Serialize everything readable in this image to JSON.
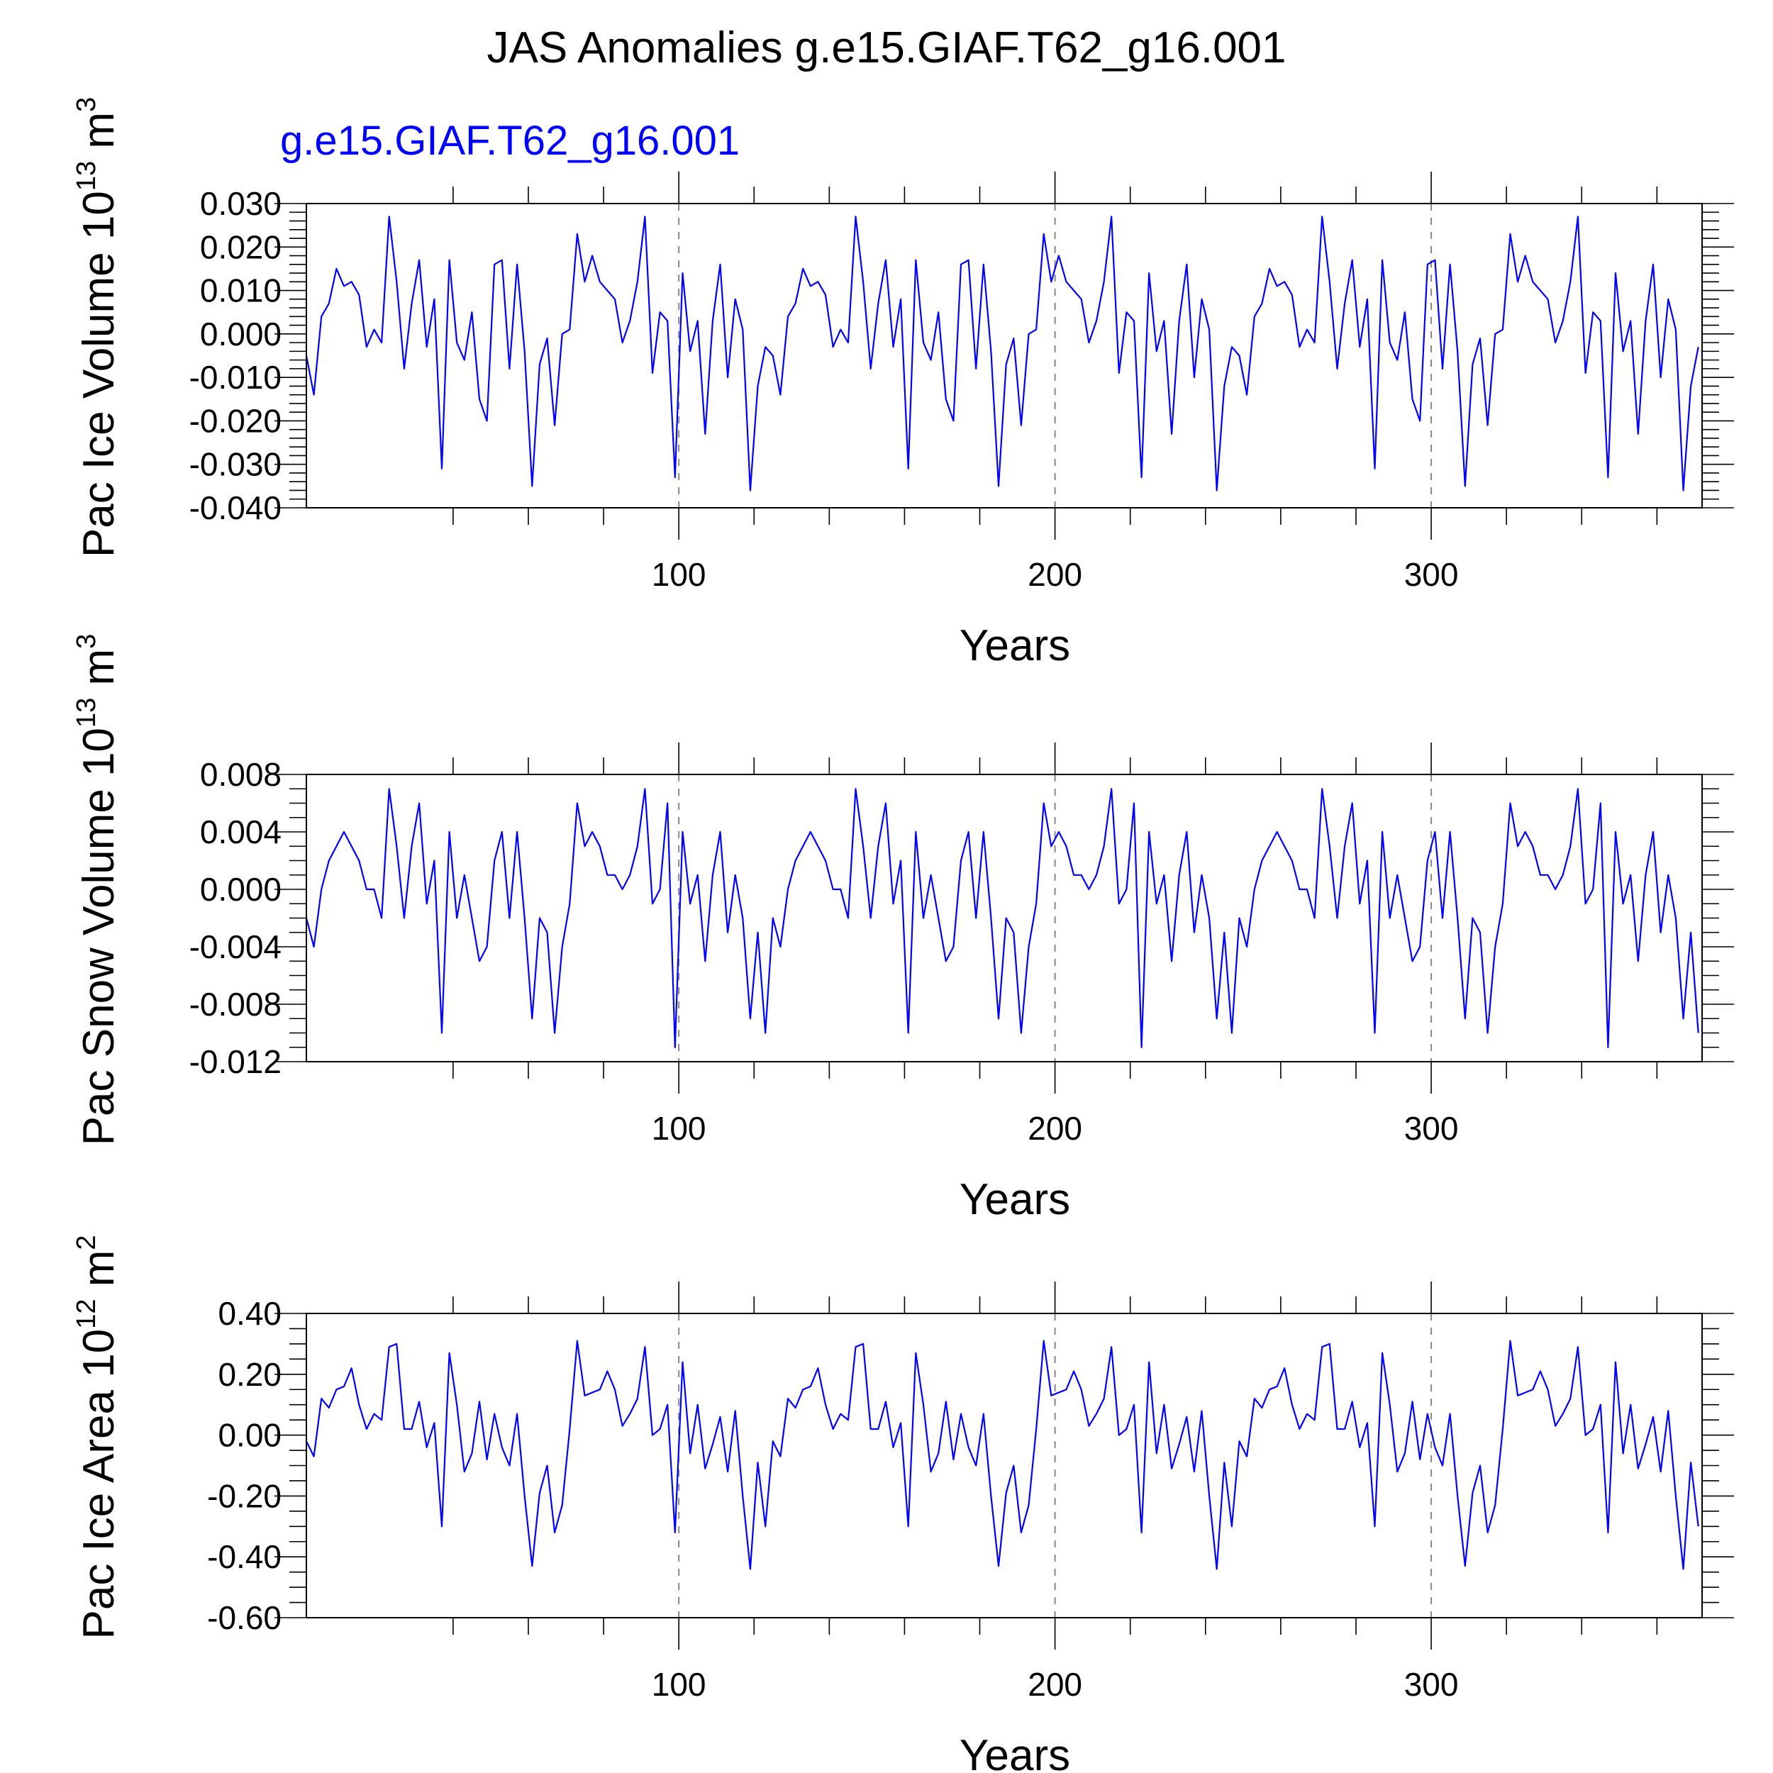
{
  "title": "JAS Anomalies g.e15.GIAF.T62_g16.001",
  "case_label": "g.e15.GIAF.T62_g16.001",
  "line_color": "#0000ff",
  "chart_data": [
    {
      "type": "line",
      "name": "Pac Ice Volume",
      "ylabel": {
        "text": "Pac Ice Volume 10",
        "exp": "13",
        "unit": " m",
        "unit_exp": "3"
      },
      "xlabel": "Years",
      "xlim": [
        1,
        372
      ],
      "ylim": [
        -0.04,
        0.03
      ],
      "x_ticks": [
        100,
        200,
        300
      ],
      "x_minor": [
        40,
        60,
        80,
        120,
        140,
        160,
        180,
        220,
        240,
        260,
        280,
        320,
        340,
        360
      ],
      "x_dashed_gridlines": [
        100,
        200,
        300
      ],
      "y_ticks": [
        0.03,
        0.02,
        0.01,
        0.0,
        -0.01,
        -0.02,
        -0.03,
        -0.04
      ],
      "y_tick_labels": [
        "0.030",
        "0.020",
        "0.010",
        "0.000",
        "-0.010",
        "-0.020",
        "-0.030",
        "-0.040"
      ],
      "y_minor_step": 0.002,
      "period": 124,
      "base_x": [
        1,
        3,
        5,
        7,
        9,
        11,
        13,
        15,
        17,
        19,
        21,
        23,
        25,
        27,
        29,
        31,
        33,
        35,
        37,
        39,
        41,
        43,
        45,
        47,
        49,
        51,
        53,
        55,
        57,
        59,
        61,
        63,
        65,
        67,
        69,
        71,
        73,
        75,
        77,
        79,
        81,
        83,
        85,
        87,
        89,
        91,
        93,
        95,
        97,
        99,
        101,
        103,
        105,
        107,
        109,
        111,
        113,
        115,
        117,
        119,
        121,
        123
      ],
      "base_y": [
        -0.005,
        -0.014,
        0.004,
        0.007,
        0.015,
        0.011,
        0.012,
        0.009,
        -0.003,
        0.001,
        -0.002,
        0.027,
        0.012,
        -0.008,
        0.007,
        0.017,
        -0.003,
        0.008,
        -0.031,
        0.017,
        -0.002,
        -0.006,
        0.005,
        -0.015,
        -0.02,
        0.016,
        0.017,
        -0.008,
        0.016,
        -0.004,
        -0.035,
        -0.007,
        -0.001,
        -0.021,
        0.0,
        0.001,
        0.023,
        0.012,
        0.018,
        0.012,
        0.01,
        0.008,
        -0.002,
        0.003,
        0.012,
        0.027,
        -0.009,
        0.005,
        0.003,
        -0.033,
        0.014,
        -0.004,
        0.003,
        -0.023,
        0.003,
        0.016,
        -0.01,
        0.008,
        0.001,
        -0.036,
        -0.012,
        -0.003
      ]
    },
    {
      "type": "line",
      "name": "Pac Snow Volume",
      "ylabel": {
        "text": "Pac Snow Volume 10",
        "exp": "13",
        "unit": " m",
        "unit_exp": "3"
      },
      "xlabel": "Years",
      "xlim": [
        1,
        372
      ],
      "ylim": [
        -0.012,
        0.008
      ],
      "x_ticks": [
        100,
        200,
        300
      ],
      "x_minor": [
        40,
        60,
        80,
        120,
        140,
        160,
        180,
        220,
        240,
        260,
        280,
        320,
        340,
        360
      ],
      "x_dashed_gridlines": [
        100,
        200,
        300
      ],
      "y_ticks": [
        0.008,
        0.004,
        0.0,
        -0.004,
        -0.008,
        -0.012
      ],
      "y_tick_labels": [
        "0.008",
        "0.004",
        "0.000",
        "-0.004",
        "-0.008",
        "-0.012"
      ],
      "y_minor_step": 0.001,
      "period": 124,
      "base_x": [
        1,
        3,
        5,
        7,
        9,
        11,
        13,
        15,
        17,
        19,
        21,
        23,
        25,
        27,
        29,
        31,
        33,
        35,
        37,
        39,
        41,
        43,
        45,
        47,
        49,
        51,
        53,
        55,
        57,
        59,
        61,
        63,
        65,
        67,
        69,
        71,
        73,
        75,
        77,
        79,
        81,
        83,
        85,
        87,
        89,
        91,
        93,
        95,
        97,
        99,
        101,
        103,
        105,
        107,
        109,
        111,
        113,
        115,
        117,
        119,
        121,
        123
      ],
      "base_y": [
        -0.002,
        -0.004,
        0.0,
        0.002,
        0.003,
        0.004,
        0.003,
        0.002,
        0.0,
        0.0,
        -0.002,
        0.007,
        0.003,
        -0.002,
        0.003,
        0.006,
        -0.001,
        0.002,
        -0.01,
        0.004,
        -0.002,
        0.001,
        -0.002,
        -0.005,
        -0.004,
        0.002,
        0.004,
        -0.002,
        0.004,
        -0.002,
        -0.009,
        -0.002,
        -0.003,
        -0.01,
        -0.004,
        -0.001,
        0.006,
        0.003,
        0.004,
        0.003,
        0.001,
        0.001,
        0.0,
        0.001,
        0.003,
        0.007,
        -0.001,
        0.0,
        0.006,
        -0.011,
        0.004,
        -0.001,
        0.001,
        -0.005,
        0.001,
        0.004,
        -0.003,
        0.001,
        -0.002,
        -0.009,
        -0.003,
        -0.01
      ]
    },
    {
      "type": "line",
      "name": "Pac Ice Area",
      "ylabel": {
        "text": "Pac Ice Area 10",
        "exp": "12",
        "unit": " m",
        "unit_exp": "2"
      },
      "xlabel": "Years",
      "xlim": [
        1,
        372
      ],
      "ylim": [
        -0.6,
        0.4
      ],
      "x_ticks": [
        100,
        200,
        300
      ],
      "x_minor": [
        40,
        60,
        80,
        120,
        140,
        160,
        180,
        220,
        240,
        260,
        280,
        320,
        340,
        360
      ],
      "x_dashed_gridlines": [
        100,
        200,
        300
      ],
      "y_ticks": [
        0.4,
        0.2,
        0.0,
        -0.2,
        -0.4,
        -0.6
      ],
      "y_tick_labels": [
        "0.40",
        "0.20",
        "0.00",
        "-0.20",
        "-0.40",
        "-0.60"
      ],
      "y_minor_step": 0.05,
      "period": 124,
      "base_x": [
        1,
        3,
        5,
        7,
        9,
        11,
        13,
        15,
        17,
        19,
        21,
        23,
        25,
        27,
        29,
        31,
        33,
        35,
        37,
        39,
        41,
        43,
        45,
        47,
        49,
        51,
        53,
        55,
        57,
        59,
        61,
        63,
        65,
        67,
        69,
        71,
        73,
        75,
        77,
        79,
        81,
        83,
        85,
        87,
        89,
        91,
        93,
        95,
        97,
        99,
        101,
        103,
        105,
        107,
        109,
        111,
        113,
        115,
        117,
        119,
        121,
        123
      ],
      "base_y": [
        -0.02,
        -0.07,
        0.12,
        0.09,
        0.15,
        0.16,
        0.22,
        0.1,
        0.02,
        0.07,
        0.05,
        0.29,
        0.3,
        0.02,
        0.02,
        0.11,
        -0.04,
        0.04,
        -0.3,
        0.27,
        0.1,
        -0.12,
        -0.06,
        0.11,
        -0.08,
        0.07,
        -0.04,
        -0.1,
        0.07,
        -0.2,
        -0.43,
        -0.19,
        -0.1,
        -0.32,
        -0.23,
        0.02,
        0.31,
        0.13,
        0.14,
        0.15,
        0.21,
        0.15,
        0.03,
        0.07,
        0.12,
        0.29,
        0.0,
        0.02,
        0.1,
        -0.32,
        0.24,
        -0.06,
        0.1,
        -0.11,
        -0.03,
        0.06,
        -0.12,
        0.08,
        -0.2,
        -0.44,
        -0.09,
        -0.3
      ]
    }
  ]
}
